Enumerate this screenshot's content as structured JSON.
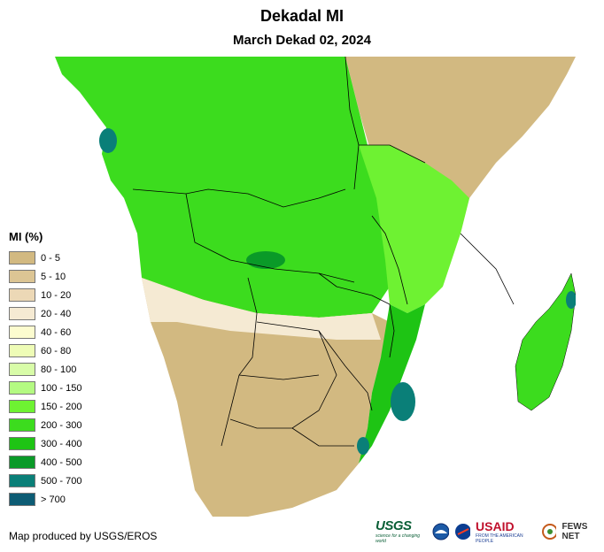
{
  "header": {
    "title": "Dekadal MI",
    "subtitle": "March Dekad 02, 2024"
  },
  "legend": {
    "title": "MI (%)",
    "items": [
      {
        "label": "0 - 5",
        "color": "#d2b981"
      },
      {
        "label": "5 - 10",
        "color": "#dcc594"
      },
      {
        "label": "10 - 20",
        "color": "#ecd8b6"
      },
      {
        "label": "20 - 40",
        "color": "#f5ead3"
      },
      {
        "label": "40 - 60",
        "color": "#fcfccf"
      },
      {
        "label": "60 - 80",
        "color": "#eefcb6"
      },
      {
        "label": "80 - 100",
        "color": "#d8fca8"
      },
      {
        "label": "100 - 150",
        "color": "#b4fa82"
      },
      {
        "label": "150 - 200",
        "color": "#6ef232"
      },
      {
        "label": "200 - 300",
        "color": "#3cdc1e"
      },
      {
        "label": "300 - 400",
        "color": "#1ec414"
      },
      {
        "label": "400 - 500",
        "color": "#0a9a28"
      },
      {
        "label": "500 - 700",
        "color": "#0a7f78"
      },
      {
        "label": "> 700",
        "color": "#0d5c74"
      }
    ]
  },
  "credit": "Map produced by USGS/EROS",
  "logos": {
    "usgs": "USGS",
    "usgs_tagline": "science for a changing world",
    "usaid": "USAID",
    "usaid_tagline": "FROM THE AMERICAN PEOPLE",
    "fews": "FEWS NET"
  },
  "icons": [
    "noaa-logo-icon",
    "nasa-logo-icon",
    "fews-net-logo-icon"
  ]
}
